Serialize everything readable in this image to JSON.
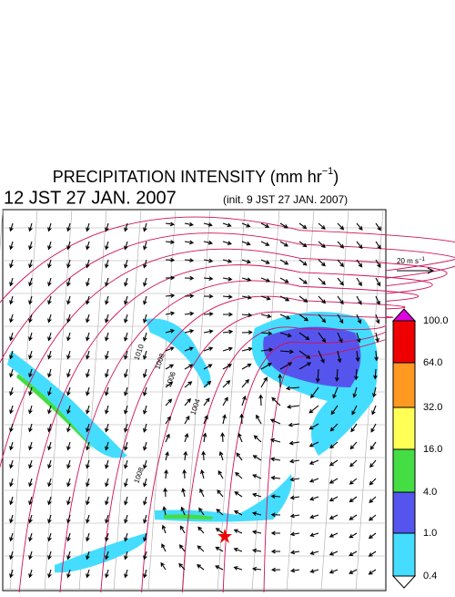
{
  "header": {
    "title": "PRECIPITATION INTENSITY (mm hr",
    "title_exponent": "−1",
    "title_close": ")",
    "valid_time": "12 JST 27 JAN. 2007",
    "init_time": "(init. 9 JST 27 JAN. 2007)"
  },
  "wind_scale": {
    "label": "20 m s",
    "exponent": "−1"
  },
  "colorbar": {
    "labels": [
      "100.0",
      "64.0",
      "32.0",
      "16.0",
      "4.0",
      "1.0",
      "0.4"
    ],
    "colors": [
      "#dd00dd",
      "#ee0000",
      "#ff9922",
      "#ffff55",
      "#44dd44",
      "#5555ee",
      "#44ddff",
      "#ffffff"
    ]
  },
  "map": {
    "contour_labels": [
      "1010",
      "1008",
      "1006",
      "1004",
      "1008"
    ]
  }
}
